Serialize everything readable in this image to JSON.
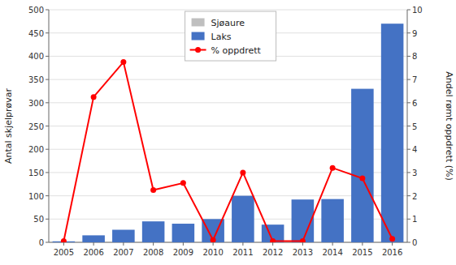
{
  "chart_data": {
    "type": "bar",
    "categories": [
      "2005",
      "2006",
      "2007",
      "2008",
      "2009",
      "2010",
      "2011",
      "2012",
      "2013",
      "2014",
      "2015",
      "2016"
    ],
    "series": [
      {
        "name": "Sjøaure",
        "type": "bar",
        "color": "#BFBFBF",
        "values": [
          2,
          2,
          2,
          2,
          2,
          2,
          2,
          2,
          2,
          2,
          2,
          2
        ]
      },
      {
        "name": "Laks",
        "type": "bar",
        "color": "#4472C4",
        "values": [
          2,
          15,
          27,
          45,
          40,
          50,
          100,
          38,
          92,
          93,
          330,
          470
        ]
      },
      {
        "name": "% oppdrett",
        "type": "line",
        "axis": "y2",
        "color": "#FF0000",
        "marker": "circle",
        "line_style": "solid",
        "values": [
          0.05,
          6.25,
          7.75,
          2.25,
          2.55,
          0.1,
          3.0,
          0.05,
          0.05,
          3.2,
          2.75,
          0.15
        ]
      }
    ],
    "ylabel": "Antal skjelprøvar",
    "y2label": "Andel rømt oppdrett (%)",
    "ylim": [
      0,
      500
    ],
    "yticks": [
      0,
      50,
      100,
      150,
      200,
      250,
      300,
      350,
      400,
      450,
      500
    ],
    "y2lim": [
      0,
      10
    ],
    "y2ticks": [
      0,
      1,
      2,
      3,
      4,
      5,
      6,
      7,
      8,
      9,
      10
    ],
    "grid": true,
    "legend": "top"
  }
}
